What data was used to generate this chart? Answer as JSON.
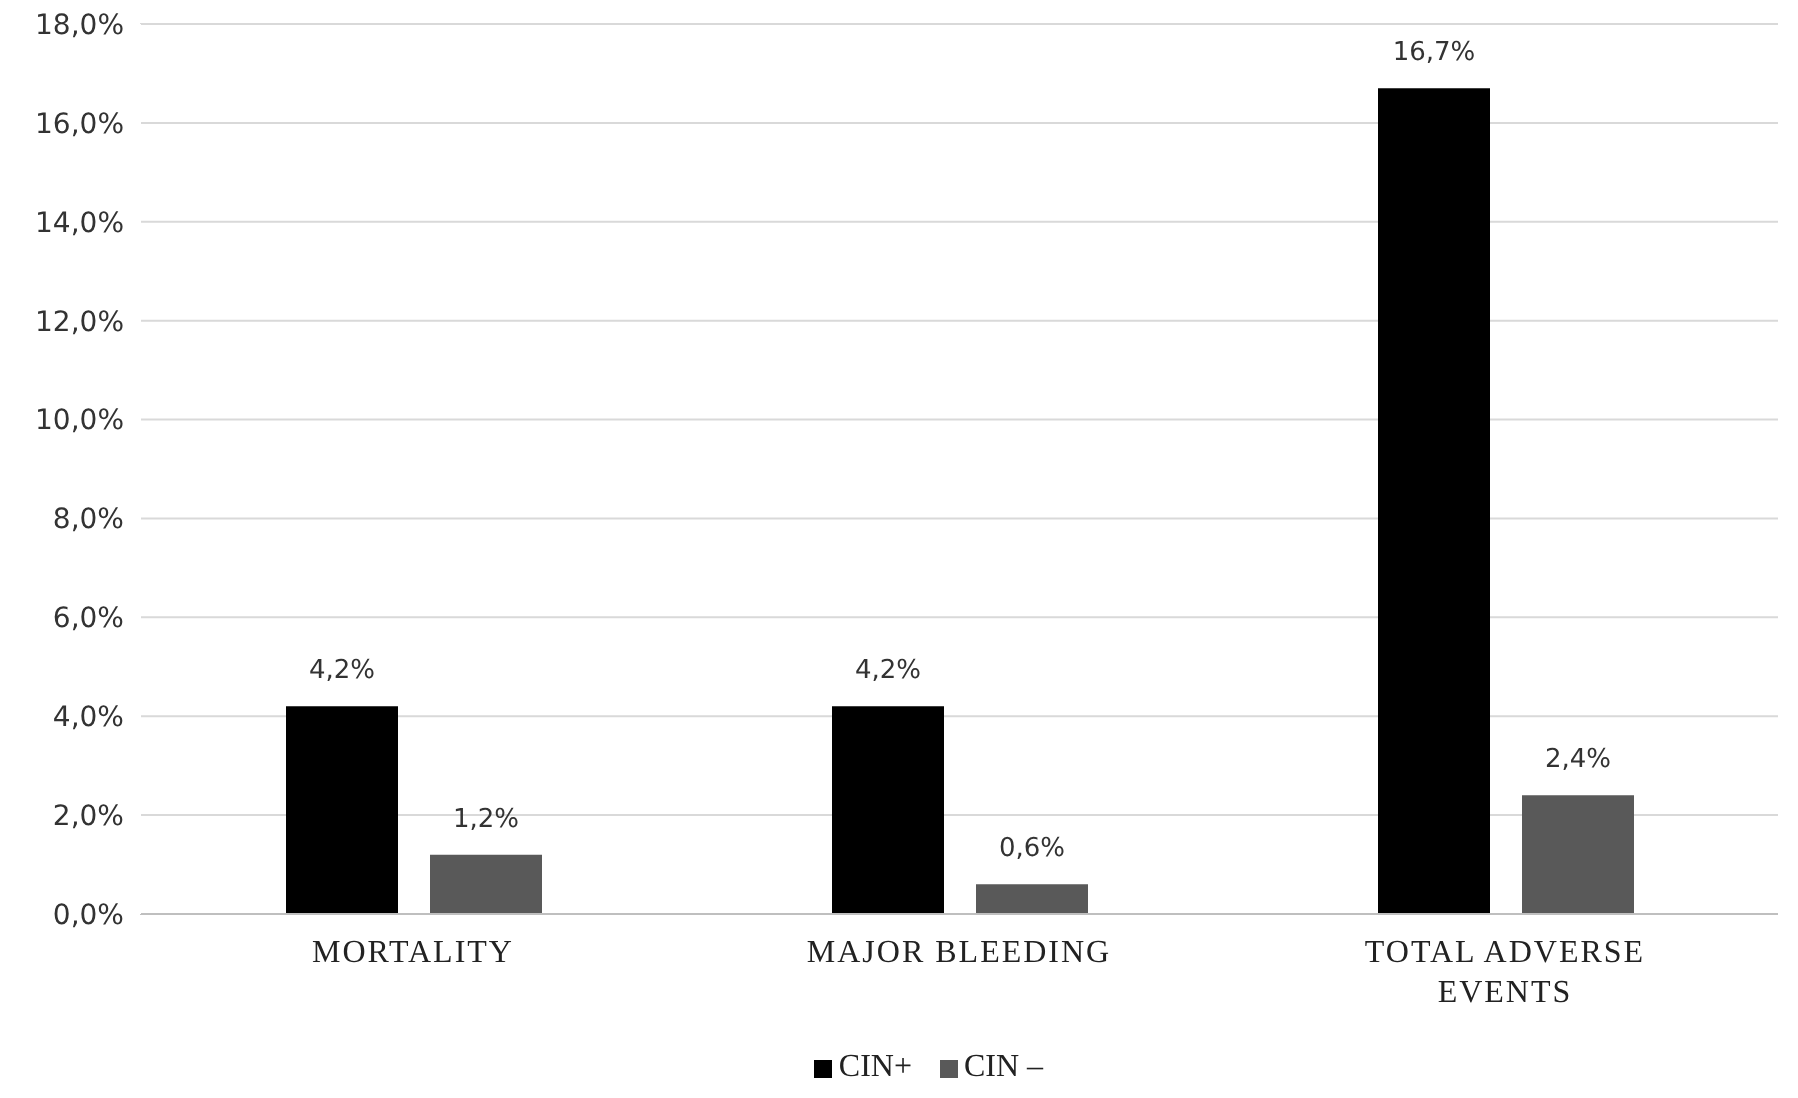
{
  "chart_data": {
    "type": "bar",
    "categories": [
      "MORTALITY",
      "MAJOR BLEEDING",
      "TOTAL ADVERSE EVENTS"
    ],
    "series": [
      {
        "name": "CIN+",
        "color": "#000000",
        "values": [
          4.2,
          4.2,
          16.7
        ],
        "value_labels": [
          "4,2%",
          "4,2%",
          "16,7%"
        ]
      },
      {
        "name": "CIN –",
        "color": "#595959",
        "values": [
          1.2,
          0.6,
          2.4
        ],
        "value_labels": [
          "1,2%",
          "0,6%",
          "2,4%"
        ]
      }
    ],
    "ylim": [
      0,
      18
    ],
    "yticks": [
      {
        "value": 0,
        "label": "0,0%"
      },
      {
        "value": 2,
        "label": "2,0%"
      },
      {
        "value": 4,
        "label": "4,0%"
      },
      {
        "value": 6,
        "label": "6,0%"
      },
      {
        "value": 8,
        "label": "8,0%"
      },
      {
        "value": 10,
        "label": "10,0%"
      },
      {
        "value": 12,
        "label": "12,0%"
      },
      {
        "value": 14,
        "label": "14,0%"
      },
      {
        "value": 16,
        "label": "16,0%"
      },
      {
        "value": 18,
        "label": "18,0%"
      }
    ],
    "grid": "y",
    "legend": "bottom"
  }
}
